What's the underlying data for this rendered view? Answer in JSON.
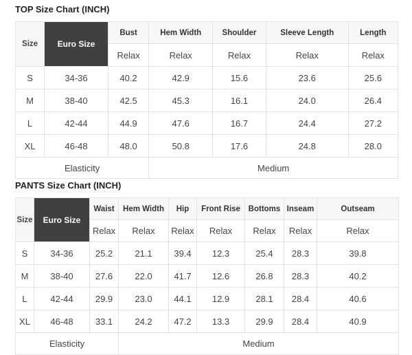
{
  "top": {
    "title": "TOP Size Chart (INCH)",
    "size_label": "Size",
    "euro_label": "Euro Size",
    "columns": [
      "Bust",
      "Hem Width",
      "Shoulder",
      "Sleeve Length",
      "Length"
    ],
    "sub_label": "Relax",
    "rows": [
      {
        "size": "S",
        "euro": "34-36",
        "values": [
          "40.2",
          "42.9",
          "15.6",
          "23.6",
          "25.6"
        ]
      },
      {
        "size": "M",
        "euro": "38-40",
        "values": [
          "42.5",
          "45.3",
          "16.1",
          "24.0",
          "26.4"
        ]
      },
      {
        "size": "L",
        "euro": "42-44",
        "values": [
          "44.9",
          "47.6",
          "16.7",
          "24.4",
          "27.2"
        ]
      },
      {
        "size": "XL",
        "euro": "46-48",
        "values": [
          "48.0",
          "50.8",
          "17.6",
          "24.8",
          "28.0"
        ]
      }
    ],
    "elasticity_label": "Elasticity",
    "elasticity_value": "Medium"
  },
  "pants": {
    "title": "PANTS Size Chart (INCH)",
    "size_label": "Size",
    "euro_label": "Euro Size",
    "columns": [
      "Waist",
      "Hem Width",
      "Hip",
      "Front Rise",
      "Bottoms",
      "Inseam",
      "Outseam"
    ],
    "sub_label": "Relax",
    "rows": [
      {
        "size": "S",
        "euro": "34-36",
        "values": [
          "25.2",
          "21.1",
          "39.4",
          "12.3",
          "25.4",
          "28.3",
          "39.8"
        ]
      },
      {
        "size": "M",
        "euro": "38-40",
        "values": [
          "27.6",
          "22.0",
          "41.7",
          "12.6",
          "26.8",
          "28.3",
          "40.2"
        ]
      },
      {
        "size": "L",
        "euro": "42-44",
        "values": [
          "29.9",
          "23.0",
          "44.1",
          "12.9",
          "28.1",
          "28.4",
          "40.6"
        ]
      },
      {
        "size": "XL",
        "euro": "46-48",
        "values": [
          "33.1",
          "24.2",
          "47.2",
          "13.3",
          "29.9",
          "28.4",
          "40.9"
        ]
      }
    ],
    "elasticity_label": "Elasticity",
    "elasticity_value": "Medium"
  }
}
